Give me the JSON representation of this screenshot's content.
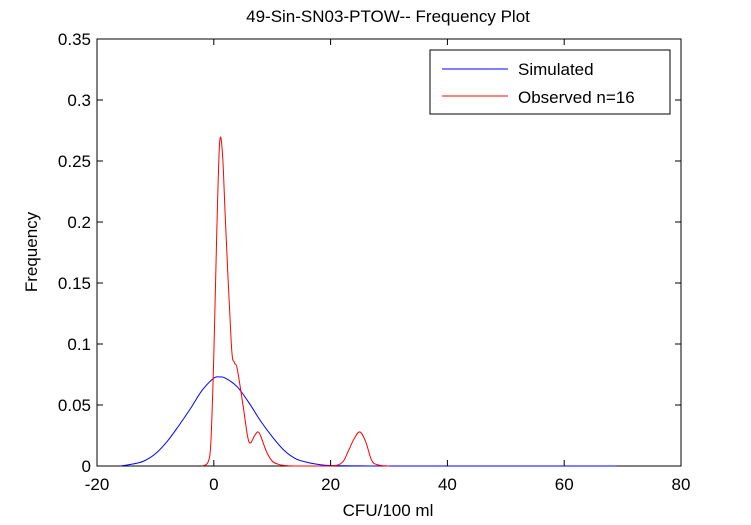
{
  "chart_data": {
    "type": "line",
    "title": "49-Sin-SN03-PTOW-- Frequency Plot",
    "xlabel": "CFU/100 ml",
    "ylabel": "Frequency",
    "xlim": [
      -20,
      80
    ],
    "ylim": [
      0,
      0.35
    ],
    "xticks": [
      -20,
      0,
      20,
      40,
      60,
      80
    ],
    "xtick_labels": [
      "-20",
      "0",
      "20",
      "40",
      "60",
      "80"
    ],
    "yticks": [
      0,
      0.05,
      0.1,
      0.15,
      0.2,
      0.25,
      0.3,
      0.35
    ],
    "ytick_labels": [
      "0",
      "0.05",
      "0.1",
      "0.15",
      "0.2",
      "0.25",
      "0.3",
      "0.35"
    ],
    "grid": false,
    "legend_position": "top-right",
    "series": [
      {
        "name": "Simulated",
        "color": "#0000ff",
        "x": [
          -16,
          -14,
          -12,
          -10,
          -8,
          -6,
          -4,
          -2,
          0,
          1,
          2,
          4,
          6,
          8,
          10,
          12,
          14,
          16,
          18,
          20,
          25,
          30,
          40,
          50,
          60,
          69
        ],
        "y": [
          0,
          0.0015,
          0.004,
          0.01,
          0.02,
          0.033,
          0.047,
          0.062,
          0.072,
          0.073,
          0.072,
          0.065,
          0.052,
          0.037,
          0.024,
          0.013,
          0.006,
          0.003,
          0.0012,
          0.0004,
          0.0001,
          0,
          0,
          0,
          0,
          0
        ]
      },
      {
        "name": "Observed n=16",
        "color": "#ff0000",
        "x": [
          -2,
          -1,
          -0.5,
          0,
          0.5,
          1,
          1.5,
          2,
          3,
          3.5,
          4,
          5,
          6,
          7,
          7.5,
          8,
          9,
          10,
          11,
          12,
          14,
          20,
          22,
          23,
          24,
          25,
          26,
          27,
          28,
          30
        ],
        "y": [
          0,
          0.003,
          0.02,
          0.09,
          0.19,
          0.265,
          0.255,
          0.2,
          0.1,
          0.085,
          0.08,
          0.05,
          0.02,
          0.025,
          0.028,
          0.025,
          0.012,
          0.004,
          0.0015,
          0.0005,
          0,
          0,
          0.003,
          0.012,
          0.022,
          0.028,
          0.02,
          0.005,
          0.001,
          0
        ]
      }
    ]
  }
}
